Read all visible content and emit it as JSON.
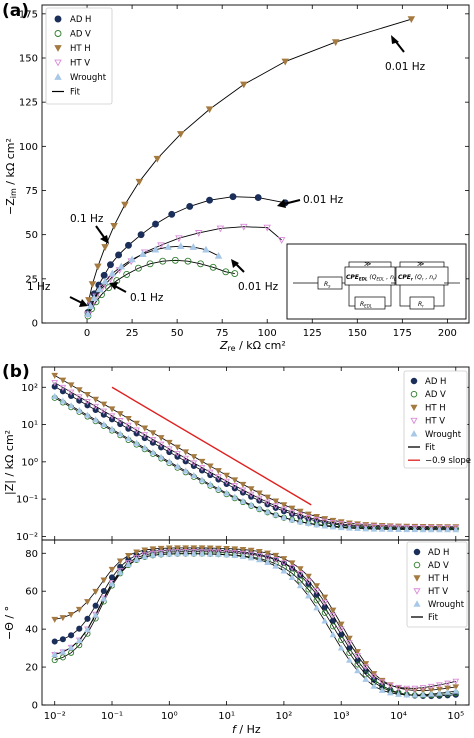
{
  "colors": {
    "ad_h": "#1b2f5a",
    "ad_v": "#2e7d2e",
    "ht_h": "#a57a40",
    "ht_v": "#d98ad8",
    "wrought": "#a8c8e8",
    "fit": "#000000",
    "slope": "#e02020"
  },
  "chart_data": [
    {
      "panel": "(a)",
      "type": "scatter",
      "xlabel_main": "Z",
      "xlabel_sub": "re",
      "xlabel_unit": " / kΩ cm²",
      "ylabel_main": "−Z",
      "ylabel_sub": "im",
      "ylabel_unit": " / kΩ cm²",
      "xlim": [
        -25,
        212
      ],
      "ylim": [
        0,
        180
      ],
      "xticks": [
        0,
        25,
        50,
        75,
        100,
        125,
        150,
        175,
        200
      ],
      "yticks": [
        0,
        25,
        50,
        75,
        100,
        125,
        150,
        175
      ],
      "legend": [
        "AD H",
        "AD V",
        "HT H",
        "HT V",
        "Wrought",
        "Fit"
      ],
      "series": [
        {
          "name": "AD H",
          "marker": "circle",
          "filled": true,
          "colorKey": "ad_h",
          "x": [
            0.5,
            2,
            4,
            6.5,
            9.5,
            13,
            17.5,
            23,
            30,
            38,
            47,
            57,
            68,
            81,
            95,
            110
          ],
          "y": [
            6,
            11,
            16.5,
            21.5,
            27,
            33,
            38.5,
            44,
            50,
            56,
            61.5,
            66,
            69.5,
            71.5,
            71,
            68
          ]
        },
        {
          "name": "AD V",
          "marker": "circle",
          "filled": false,
          "colorKey": "ad_v",
          "x": [
            0.5,
            2.5,
            5,
            8,
            12,
            16.5,
            22,
            28.5,
            35,
            42,
            49,
            56,
            63,
            70,
            77,
            82
          ],
          "y": [
            4,
            8,
            12,
            16,
            20,
            24,
            27.5,
            31,
            33.5,
            35,
            35.5,
            35,
            33.5,
            31.5,
            29,
            28
          ]
        },
        {
          "name": "HT H",
          "marker": "tri-down",
          "filled": true,
          "colorKey": "ht_h",
          "x": [
            1,
            3,
            6,
            10,
            15,
            21,
            29,
            39,
            52,
            68,
            87,
            110,
            138,
            180
          ],
          "y": [
            13,
            22,
            32,
            43,
            55,
            67,
            80,
            93,
            107,
            121,
            135,
            148,
            159,
            172
          ]
        },
        {
          "name": "HT V",
          "marker": "tri-down",
          "filled": false,
          "colorKey": "ht_v",
          "x": [
            0.5,
            2.5,
            5,
            8.5,
            13,
            18,
            24.5,
            32,
            41,
            51,
            62,
            74,
            87,
            100,
            108
          ],
          "y": [
            5,
            10,
            15,
            20,
            25,
            30,
            35,
            40,
            44,
            48,
            51,
            53.5,
            54.5,
            54,
            47
          ]
        },
        {
          "name": "Wrought",
          "marker": "tri-up",
          "filled": true,
          "colorKey": "wrought",
          "x": [
            0.5,
            2,
            4,
            7,
            10,
            14,
            19,
            25,
            31,
            38,
            45,
            52,
            59,
            66,
            73
          ],
          "y": [
            5,
            9.5,
            14,
            19,
            23.5,
            28,
            32,
            36,
            39,
            41.5,
            43,
            43.5,
            43,
            41.5,
            38
          ]
        }
      ],
      "annotations": [
        "0.01 Hz",
        "0.01 Hz",
        "0.01 Hz",
        "0.1 Hz",
        "0.1 Hz",
        "1 Hz"
      ],
      "inset": {
        "rs": "R",
        "rs_sub": "s",
        "cpe_edl": "CPE",
        "cpe_edl_sub": "EDL",
        "cpe_edl_params": " (Q",
        "cpe_edl_params_sub": "EDL",
        "cpe_edl_params2": " , n",
        "cpe_edl_params2_sub": "EDL",
        "cpe_edl_close": ")",
        "r_edl": "R",
        "r_edl_sub": "EDL",
        "cpe_r": "CPE",
        "cpe_r_sub": "r",
        "cpe_r_params": " (Q",
        "cpe_r_params_sub": "r",
        "cpe_r_params2": " , n",
        "cpe_r_params2_sub": "r",
        "cpe_r_close": ")",
        "r_r": "R",
        "r_r_sub": "r"
      }
    },
    {
      "panel": "(b)",
      "type": "line",
      "subplot": "magnitude",
      "ylabel": "|Z| / kΩ cm²",
      "yscale": "log",
      "ylim": [
        0.008,
        350
      ],
      "xlim": [
        0.006,
        170000
      ],
      "yticks": [
        0.01,
        0.1,
        1,
        10,
        100
      ],
      "ytick_labels": [
        "10⁻²",
        "10⁻¹",
        "10⁰",
        "10¹",
        "10²"
      ],
      "legend": [
        "AD H",
        "AD V",
        "HT H",
        "HT V",
        "Wrought",
        "Fit",
        "−0.9 slope"
      ],
      "slope_line": {
        "x": [
          0.1,
          300
        ],
        "y": [
          100,
          0.07
        ]
      },
      "series": [
        {
          "name": "AD H",
          "colorKey": "ad_h",
          "low": 110,
          "plateau": 0.016,
          "exp": 0.88
        },
        {
          "name": "AD V",
          "colorKey": "ad_v",
          "low": 55,
          "plateau": 0.016,
          "exp": 0.88
        },
        {
          "name": "HT H",
          "colorKey": "ht_h",
          "low": 220,
          "plateau": 0.018,
          "exp": 0.9
        },
        {
          "name": "HT V",
          "colorKey": "ht_v",
          "low": 140,
          "plateau": 0.017,
          "exp": 0.89
        },
        {
          "name": "Wrought",
          "colorKey": "wrought",
          "low": 60,
          "plateau": 0.015,
          "exp": 0.88
        }
      ]
    },
    {
      "subplot": "phase",
      "type": "line",
      "ylabel": "−Θ / °",
      "xlabel_main": "f",
      "xlabel_unit": " / Hz",
      "ylim": [
        0,
        87
      ],
      "yticks": [
        0,
        20,
        40,
        60,
        80
      ],
      "xticks": [
        0.01,
        0.1,
        1,
        10,
        100,
        1000,
        10000,
        100000
      ],
      "xtick_labels": [
        "10⁻²",
        "10⁻¹",
        "10⁰",
        "10¹",
        "10²",
        "10³",
        "10⁴",
        "10⁵"
      ],
      "legend": [
        "AD H",
        "AD V",
        "HT H",
        "HT V",
        "Wrought",
        "Fit"
      ],
      "series": [
        {
          "name": "AD H",
          "colorKey": "ad_h",
          "start": 32,
          "peak": 82,
          "fc": 120,
          "endUp": 5
        },
        {
          "name": "AD V",
          "colorKey": "ad_v",
          "start": 22,
          "peak": 80,
          "fc": 110,
          "endUp": 6
        },
        {
          "name": "HT H",
          "colorKey": "ht_h",
          "start": 44,
          "peak": 83,
          "fc": 150,
          "endUp": 9
        },
        {
          "name": "HT V",
          "colorKey": "ht_v",
          "start": 25,
          "peak": 81,
          "fc": 140,
          "endUp": 12
        },
        {
          "name": "Wrought",
          "colorKey": "wrought",
          "start": 25,
          "peak": 80,
          "fc": 90,
          "endUp": 7
        }
      ]
    }
  ]
}
